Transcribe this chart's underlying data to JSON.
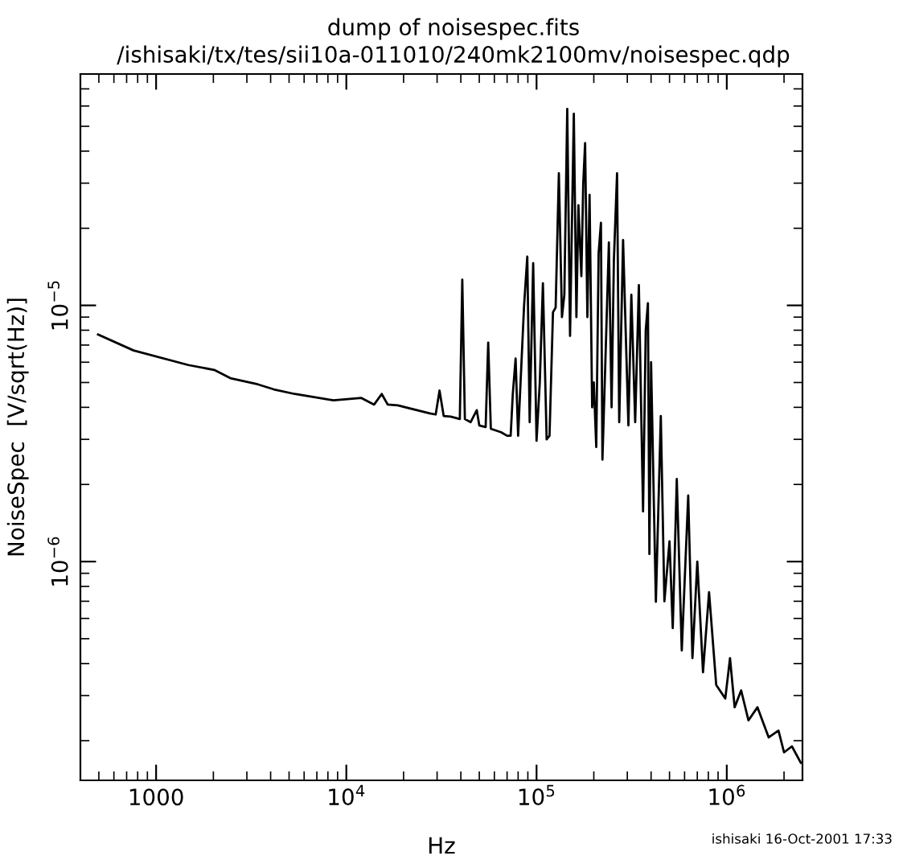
{
  "chart_data": {
    "type": "line",
    "title": "dump of noisespec.fits",
    "subtitle": "/ishisaki/tx/tes/sii10a-011010/240mk2100mv/noisespec.qdp",
    "xlabel": "Hz",
    "ylabel": "NoiseSpec  [V/sqrt(Hz)]",
    "annotations": [
      "ishisaki 16-Oct-2001 17:33"
    ],
    "log": "xy",
    "grid": false,
    "legend": false,
    "marker": "none",
    "line_style": "solid",
    "xlim": [
      400,
      2500000
    ],
    "ylim": [
      1.4e-07,
      8e-05
    ],
    "xticks": [
      1000,
      {
        "value": 10000,
        "label": "10$^{4}$"
      },
      {
        "value": 100000,
        "label": "10$^{5}$"
      },
      {
        "value": 1000000,
        "label": "10$^{6}$"
      }
    ],
    "yticks": [
      {
        "value": 1e-06,
        "label": "10$^{−6}$"
      },
      {
        "value": 1e-05,
        "label": "10$^{−5}$"
      }
    ],
    "series": [
      {
        "color": "#000000",
        "x": [
          495,
          761,
          1477,
          2020,
          2455,
          3420,
          4160,
          5360,
          8550,
          12000,
          14000,
          15350,
          16500,
          18660,
          27500,
          29500,
          30900,
          32500,
          35400,
          39500,
          40700,
          42000,
          45000,
          48500,
          50000,
          54000,
          55700,
          57500,
          65000,
          70000,
          73100,
          75000,
          77600,
          80000,
          86000,
          89400,
          92000,
          96000,
          100000,
          104000,
          108000,
          113000,
          117000,
          122000,
          126000,
          131000,
          136000,
          140000,
          145000,
          150000,
          157000,
          162000,
          166000,
          172000,
          176000,
          180000,
          185000,
          190000,
          196000,
          200000,
          206000,
          212000,
          218000,
          222000,
          230000,
          240000,
          248000,
          255000,
          265000,
          272000,
          285000,
          304000,
          315000,
          330000,
          345000,
          363000,
          375000,
          385000,
          392000,
          400000,
          415000,
          424000,
          450000,
          470000,
          500000,
          520000,
          546000,
          580000,
          627000,
          660000,
          700000,
          750000,
          807000,
          880000,
          982000,
          1040000,
          1100000,
          1190000,
          1300000,
          1450000,
          1660000,
          1870000,
          2000000,
          2200000,
          2450000
        ],
        "values": [
          7.7e-06,
          6.67e-06,
          5.85e-06,
          5.6e-06,
          5.2e-06,
          4.92e-06,
          4.7e-06,
          4.51e-06,
          4.26e-06,
          4.35e-06,
          4.1e-06,
          4.51e-06,
          4.1e-06,
          4.07e-06,
          3.79e-06,
          3.75e-06,
          4.65e-06,
          3.7e-06,
          3.68e-06,
          3.6e-06,
          1.26e-05,
          3.6e-06,
          3.5e-06,
          3.9e-06,
          3.4e-06,
          3.35e-06,
          7.16e-06,
          3.3e-06,
          3.2e-06,
          3.1e-06,
          3.1e-06,
          4.5e-06,
          6.2e-06,
          3.1e-06,
          1e-05,
          1.55e-05,
          3.5e-06,
          1.46e-05,
          2.96e-06,
          5e-06,
          1.22e-05,
          3e-06,
          3.1e-06,
          9.4e-06,
          9.8e-06,
          3.28e-05,
          9e-06,
          1.1e-05,
          5.85e-05,
          7.6e-06,
          5.6e-05,
          9e-06,
          2.46e-05,
          1.3e-05,
          3e-05,
          4.3e-05,
          9e-06,
          2.7e-05,
          4e-06,
          5e-06,
          2.8e-06,
          1.6e-05,
          2.1e-05,
          2.5e-06,
          6e-06,
          1.76e-05,
          4e-06,
          1.5e-05,
          3.28e-05,
          3.5e-06,
          1.8e-05,
          3.4e-06,
          1.1e-05,
          3.5e-06,
          1.2e-05,
          1.57e-06,
          8e-06,
          1.02e-05,
          1.07e-06,
          6e-06,
          1.5e-06,
          6.97e-07,
          3.7e-06,
          7e-07,
          1.2e-06,
          5.5e-07,
          2.1e-06,
          4.5e-07,
          1.81e-06,
          4.2e-07,
          1e-06,
          3.7e-07,
          7.6e-07,
          3.3e-07,
          2.92e-07,
          4.2e-07,
          2.7e-07,
          3.14e-07,
          2.4e-07,
          2.7e-07,
          2.06e-07,
          2.19e-07,
          1.8e-07,
          1.9e-07,
          1.64e-07
        ]
      }
    ]
  }
}
